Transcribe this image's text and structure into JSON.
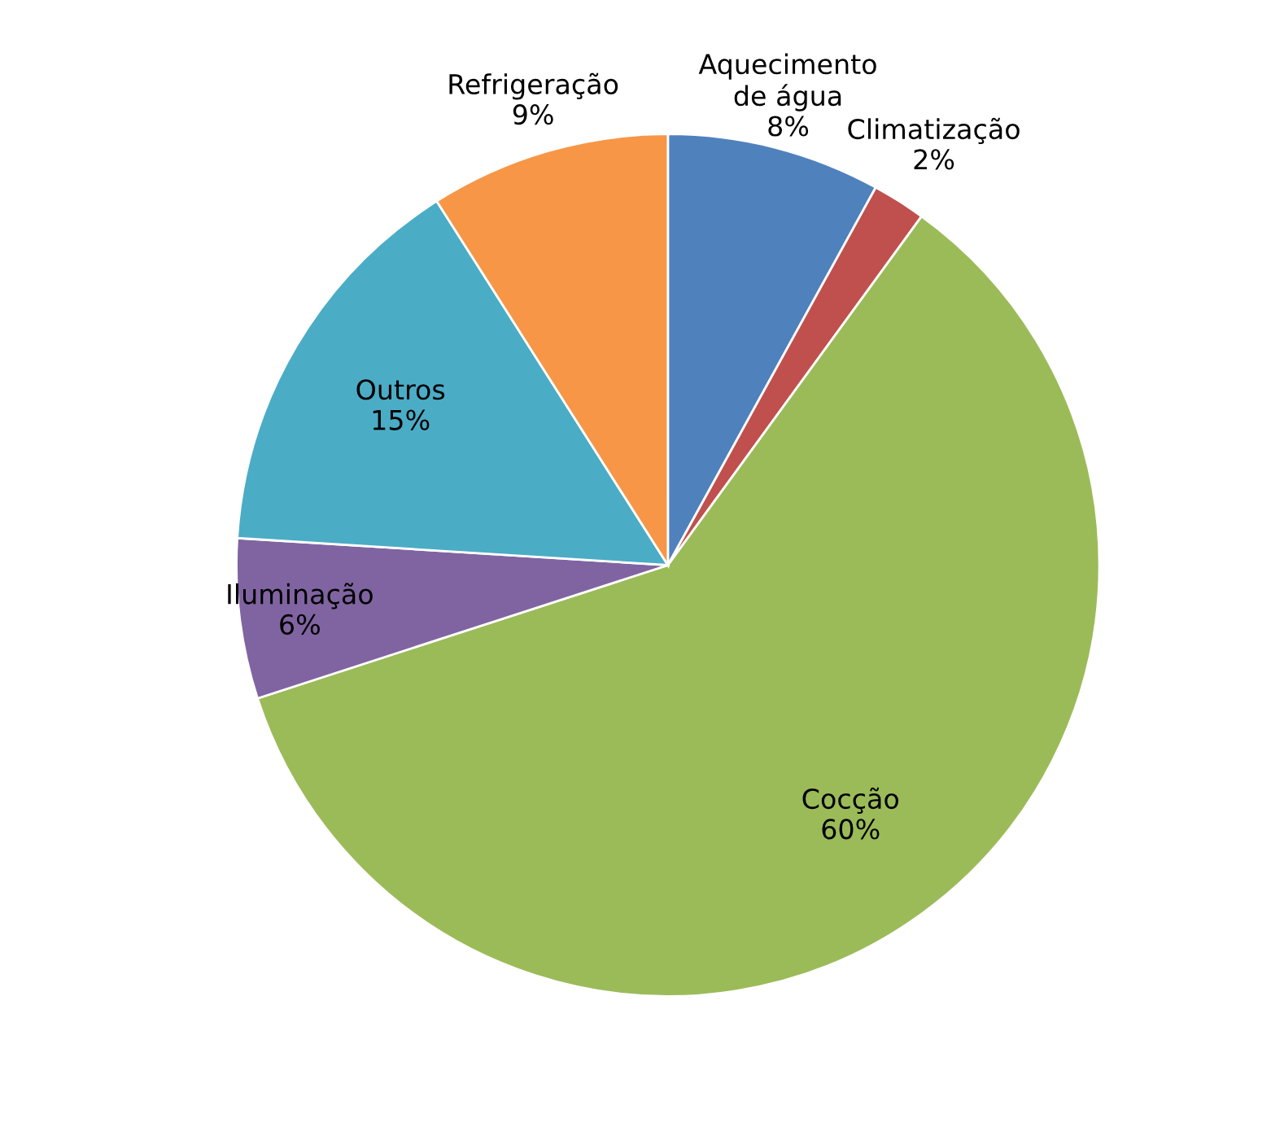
{
  "chart_data": {
    "type": "pie",
    "categories": [
      "Aquecimento\nde água",
      "Climatização",
      "Cocção",
      "Iluminação",
      "Outros",
      "Refrigeração"
    ],
    "values": [
      8,
      2,
      60,
      6,
      15,
      9
    ],
    "colors": [
      "#4f81bd",
      "#c0504d",
      "#9bbb59",
      "#8064a2",
      "#4bacc6",
      "#f79646"
    ],
    "value_labels": [
      "8%",
      "2%",
      "60%",
      "6%",
      "15%",
      "9%"
    ],
    "legend": false
  }
}
